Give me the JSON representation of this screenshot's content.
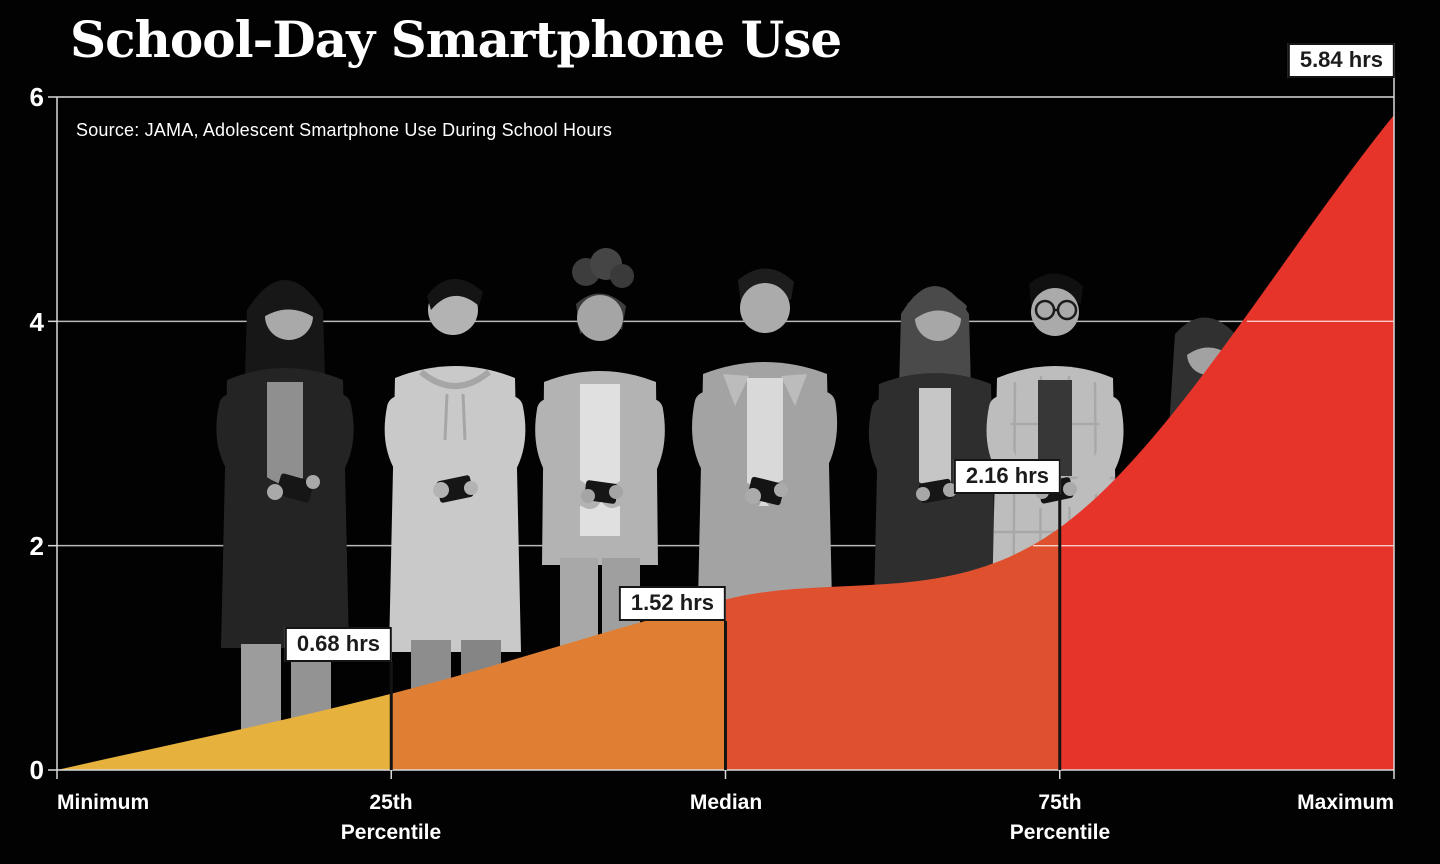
{
  "title": "School-Day Smartphone Use",
  "source_note": "Source: JAMA, Adolescent Smartphone Use During School Hours",
  "chart_data": {
    "type": "area",
    "title": "School-Day Smartphone Use",
    "categories": [
      "Minimum",
      "25th Percentile",
      "Median",
      "75th Percentile",
      "Maximum"
    ],
    "values": [
      0,
      0.68,
      1.52,
      2.16,
      5.84
    ],
    "unit": "hrs",
    "ylim": [
      0,
      6
    ],
    "yticks": [
      0,
      2,
      4,
      6
    ],
    "grid": "horizontal light lines over black",
    "legend": "none",
    "band_colors": [
      "#E6B13C",
      "#E07F33",
      "#DF512E",
      "#E7342B"
    ],
    "annotations": [
      "0.68 hrs",
      "1.52 hrs",
      "2.16 hrs",
      "5.84 hrs"
    ]
  },
  "y_axis": {
    "ticks": [
      "6",
      "4",
      "2",
      "0"
    ]
  },
  "x_axis": {
    "labels": [
      [
        "Minimum"
      ],
      [
        "25th",
        "Percentile"
      ],
      [
        "Median"
      ],
      [
        "75th",
        "Percentile"
      ],
      [
        "Maximum"
      ]
    ]
  },
  "tags": {
    "p25": "0.68 hrs",
    "median": "1.52 hrs",
    "p75": "2.16 hrs",
    "max": "5.84 hrs"
  },
  "colors": {
    "background": "#020202",
    "axis": "#d9d9d9",
    "divider": "#141414",
    "tag_background": "#ffffff",
    "tag_text": "#1b1b1b"
  }
}
